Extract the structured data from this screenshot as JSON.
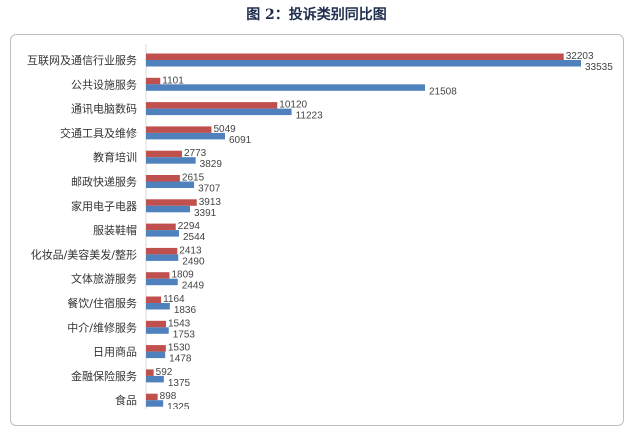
{
  "chart_data": {
    "type": "bar",
    "orientation": "horizontal",
    "title": "图 2：投诉类别同比图",
    "categories": [
      "互联网及通信行业服务",
      "公共设施服务",
      "通讯电脑数码",
      "交通工具及维修",
      "教育培训",
      "邮政快递服务",
      "家用电子电器",
      "服装鞋帽",
      "化妆品/美容美发/整形",
      "文体旅游服务",
      "餐饮/住宿服务",
      "中介/维修服务",
      "日用商品",
      "金融保险服务",
      "食品"
    ],
    "series": [
      {
        "color": "#c0504d",
        "values": [
          32203,
          1101,
          10120,
          5049,
          2773,
          2615,
          3913,
          2294,
          2413,
          1809,
          1164,
          1543,
          1530,
          592,
          898
        ]
      },
      {
        "color": "#4f81bd",
        "values": [
          33535,
          21508,
          11223,
          6091,
          3829,
          3707,
          3391,
          2544,
          2490,
          2449,
          1836,
          1753,
          1478,
          1375,
          1325
        ]
      }
    ],
    "xlim": [
      0,
      33535
    ],
    "grid": false,
    "legend": "none"
  }
}
